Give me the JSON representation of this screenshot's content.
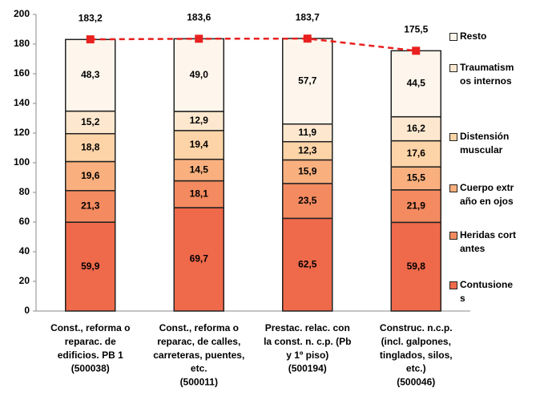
{
  "chart_data": {
    "type": "stacked_bar",
    "categories": [
      [
        "Const., reforma o",
        "reparac. de",
        "edificios. PB 1",
        "(500038)"
      ],
      [
        "Const.,  reforma o",
        "reparac, de calles,",
        "carreteras, puentes,",
        "etc.",
        "(500011)"
      ],
      [
        "Prestac. relac. con",
        "la const. n. c.p. (Pb",
        "y 1º piso)",
        "(500194)"
      ],
      [
        "Construc. n.c.p.",
        "(incl. galpones,",
        "tinglados, silos,",
        "etc.)",
        "(500046)"
      ]
    ],
    "series": [
      {
        "name": "Contusiones",
        "color": "#ef694b",
        "values": [
          59.9,
          69.7,
          62.5,
          59.8
        ],
        "value_labels": [
          "59,9",
          "69,7",
          "62,5",
          "59,8"
        ]
      },
      {
        "name": "Heridas cortantes",
        "color": "#f48a60",
        "values": [
          21.3,
          18.1,
          23.5,
          21.9
        ],
        "value_labels": [
          "21,3",
          "18,1",
          "23,5",
          "21,9"
        ]
      },
      {
        "name": "Cuerpo extraño en ojos",
        "color": "#f9b07e",
        "values": [
          19.6,
          14.5,
          15.9,
          15.5
        ],
        "value_labels": [
          "19,6",
          "14,5",
          "15,9",
          "15,5"
        ]
      },
      {
        "name": "Distensión muscular",
        "color": "#fcd4a7",
        "values": [
          18.8,
          19.4,
          12.3,
          17.6
        ],
        "value_labels": [
          "18,8",
          "19,4",
          "12,3",
          "17,6"
        ]
      },
      {
        "name": "Traumatismos internos",
        "color": "#fde8cf",
        "values": [
          15.2,
          12.9,
          11.9,
          16.2
        ],
        "value_labels": [
          "15,2",
          "12,9",
          "11,9",
          "16,2"
        ]
      },
      {
        "name": "Resto",
        "color": "#fef6ec",
        "values": [
          48.3,
          49.0,
          57.7,
          44.5
        ],
        "value_labels": [
          "48,3",
          "49,0",
          "57,7",
          "44,5"
        ]
      }
    ],
    "totals": {
      "color": "#e8201f",
      "values": [
        183.2,
        183.6,
        183.7,
        175.5
      ],
      "value_labels": [
        "183,2",
        "183,6",
        "183,7",
        "175,5"
      ]
    },
    "ylim": [
      0,
      200
    ],
    "yticks": [
      0,
      20,
      40,
      60,
      80,
      100,
      120,
      140,
      160,
      180,
      200
    ]
  }
}
